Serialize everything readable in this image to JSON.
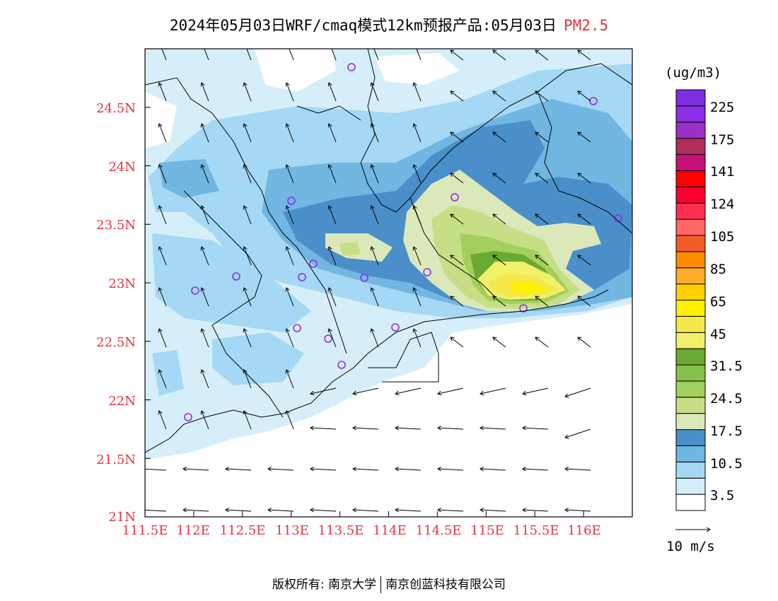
{
  "title": {
    "main": "2024年05月03日WRF/cmaq模式12km预报产品:05月03日",
    "species": "PM2.5"
  },
  "map": {
    "lat_labels": [
      "24.5N",
      "24N",
      "23.5N",
      "23N",
      "22.5N",
      "22N",
      "21.5N",
      "21N"
    ],
    "lon_labels": [
      "111.5E",
      "112E",
      "112.5E",
      "113E",
      "113.5E",
      "114E",
      "114.5E",
      "115E",
      "115.5E",
      "116E"
    ],
    "extent": {
      "lon_min": 111.5,
      "lon_max": 116.5,
      "lat_min": 21.0,
      "lat_max": 25.0
    }
  },
  "colorbar": {
    "unit": "(ug/m3)",
    "labels": [
      "3.5",
      "10.5",
      "17.5",
      "24.5",
      "31.5",
      "45",
      "65",
      "85",
      "105",
      "124",
      "141",
      "175",
      "225"
    ],
    "colors": [
      "#ffffff",
      "#d6eef9",
      "#a4d8f4",
      "#72b6e2",
      "#4a8fc9",
      "#dbe8b9",
      "#c6df86",
      "#a3cf5f",
      "#86c04a",
      "#6aa932",
      "#f0f06b",
      "#f5e84d",
      "#fff000",
      "#ffd000",
      "#ffad28",
      "#ff8c00",
      "#f25c2a",
      "#ff6666",
      "#ff2e4f",
      "#ff0033",
      "#ff0000",
      "#c8107a",
      "#b02c5c",
      "#9b30c8",
      "#8e2ee8",
      "#7b2ee0"
    ]
  },
  "wind_legend": "10 m/s",
  "credit": {
    "left": "版权所有: 南京大学",
    "right": "南京创蓝科技有限公司"
  }
}
